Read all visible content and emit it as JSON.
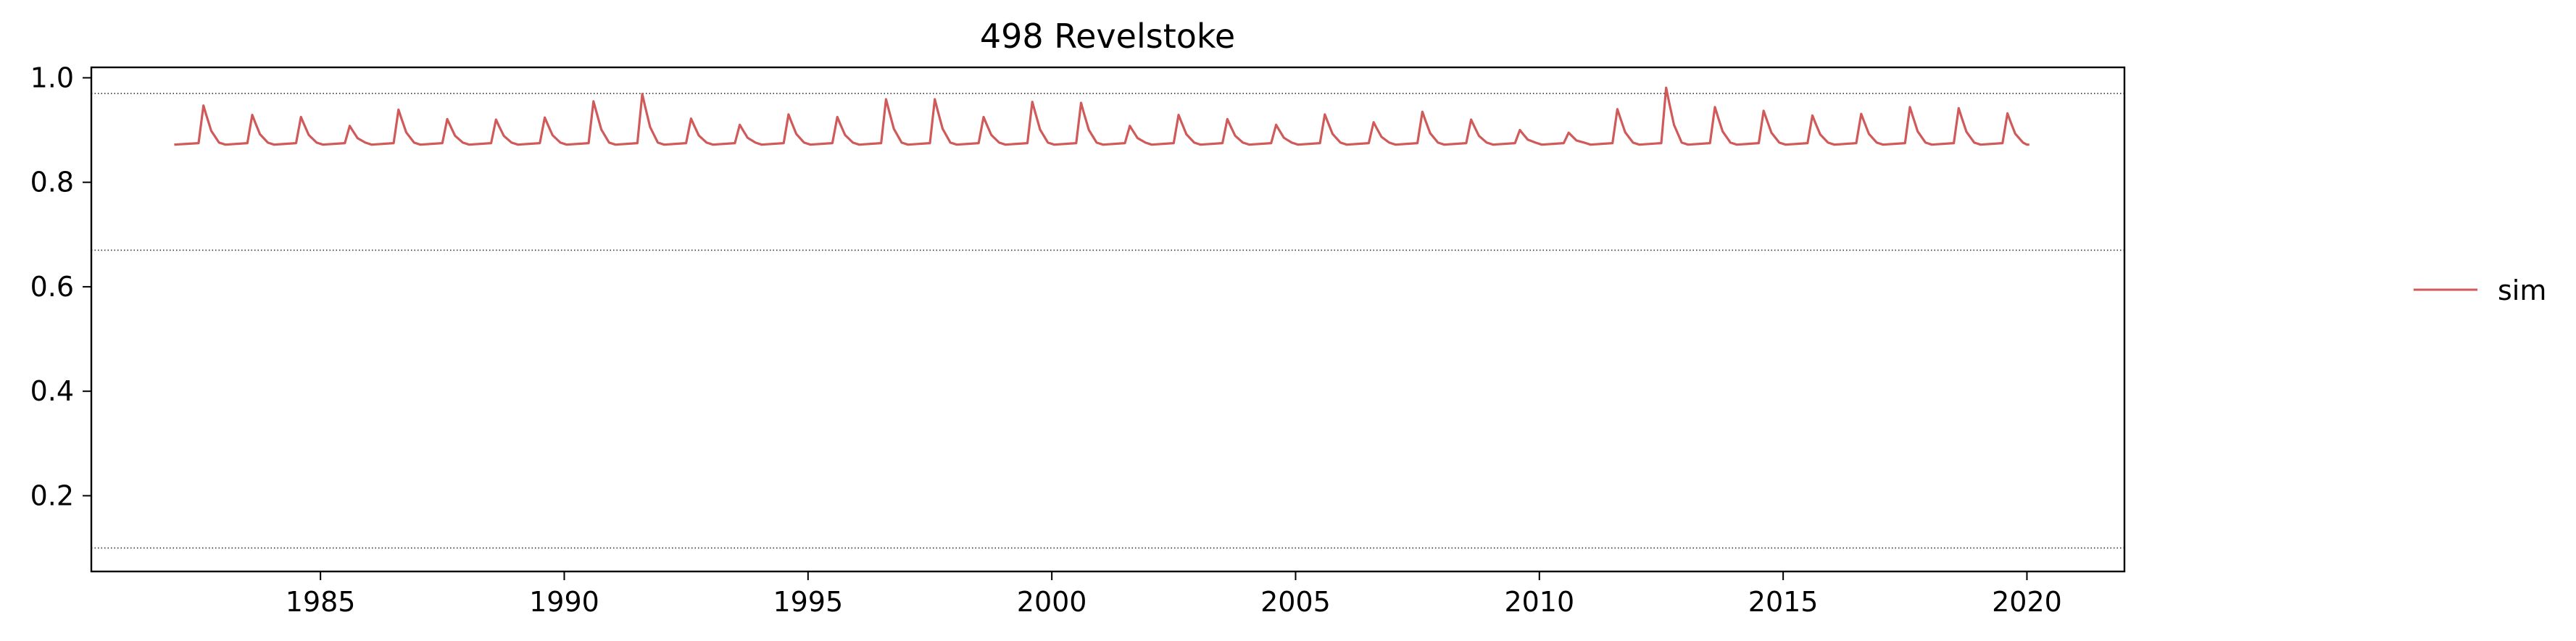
{
  "chart_data": {
    "type": "line",
    "title": "498  Revelstoke",
    "xlabel": "",
    "ylabel": "",
    "xlim": [
      1980.3,
      2022.0
    ],
    "ylim": [
      0.055,
      1.02
    ],
    "x_ticks": [
      1985,
      1990,
      1995,
      2000,
      2005,
      2010,
      2015,
      2020
    ],
    "y_ticks": [
      0.2,
      0.4,
      0.6,
      0.8,
      1.0
    ],
    "x_tick_labels": [
      "1985",
      "1990",
      "1995",
      "2000",
      "2005",
      "2010",
      "2015",
      "2020"
    ],
    "y_tick_labels": [
      "0.2",
      "0.4",
      "0.6",
      "0.8",
      "1.0"
    ],
    "reference_lines": [
      0.97,
      0.67,
      0.1
    ],
    "grid": false,
    "legend_position": "right",
    "baseline": 0.872,
    "series": [
      {
        "name": "sim",
        "color": "#d05a5a",
        "x_start": 1982.0,
        "x_end": 2020.0,
        "annual_peaks": [
          {
            "x": 1982.6,
            "y": 0.947
          },
          {
            "x": 1983.6,
            "y": 0.929
          },
          {
            "x": 1984.6,
            "y": 0.925
          },
          {
            "x": 1985.6,
            "y": 0.908
          },
          {
            "x": 1986.6,
            "y": 0.939
          },
          {
            "x": 1987.6,
            "y": 0.921
          },
          {
            "x": 1988.6,
            "y": 0.92
          },
          {
            "x": 1989.6,
            "y": 0.924
          },
          {
            "x": 1990.6,
            "y": 0.955
          },
          {
            "x": 1991.6,
            "y": 0.969
          },
          {
            "x": 1992.6,
            "y": 0.922
          },
          {
            "x": 1993.6,
            "y": 0.91
          },
          {
            "x": 1994.6,
            "y": 0.93
          },
          {
            "x": 1995.6,
            "y": 0.925
          },
          {
            "x": 1996.6,
            "y": 0.959
          },
          {
            "x": 1997.6,
            "y": 0.959
          },
          {
            "x": 1998.6,
            "y": 0.925
          },
          {
            "x": 1999.6,
            "y": 0.954
          },
          {
            "x": 2000.6,
            "y": 0.952
          },
          {
            "x": 2001.6,
            "y": 0.908
          },
          {
            "x": 2002.6,
            "y": 0.929
          },
          {
            "x": 2003.6,
            "y": 0.921
          },
          {
            "x": 2004.6,
            "y": 0.91
          },
          {
            "x": 2005.6,
            "y": 0.93
          },
          {
            "x": 2006.6,
            "y": 0.915
          },
          {
            "x": 2007.6,
            "y": 0.935
          },
          {
            "x": 2008.6,
            "y": 0.92
          },
          {
            "x": 2009.6,
            "y": 0.9
          },
          {
            "x": 2010.6,
            "y": 0.895
          },
          {
            "x": 2011.6,
            "y": 0.94
          },
          {
            "x": 2012.6,
            "y": 0.981
          },
          {
            "x": 2013.6,
            "y": 0.944
          },
          {
            "x": 2014.6,
            "y": 0.937
          },
          {
            "x": 2015.6,
            "y": 0.928
          },
          {
            "x": 2016.6,
            "y": 0.931
          },
          {
            "x": 2017.6,
            "y": 0.944
          },
          {
            "x": 2018.6,
            "y": 0.942
          },
          {
            "x": 2019.6,
            "y": 0.932
          }
        ]
      }
    ]
  }
}
